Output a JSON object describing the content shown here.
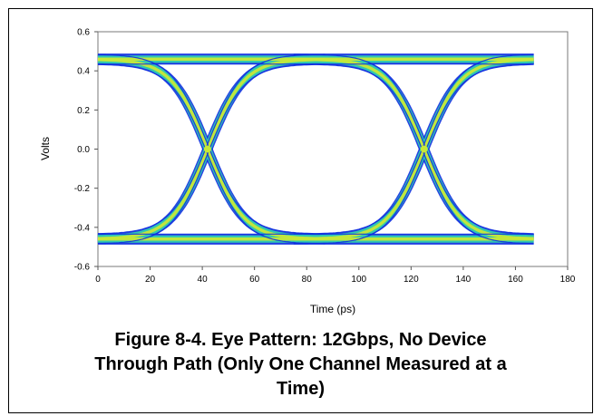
{
  "caption": {
    "line1": "Figure 8-4. Eye Pattern: 12Gbps, No Device",
    "line2": "Through Path (Only One Channel Measured at a",
    "line3": "Time)"
  },
  "chart_data": {
    "type": "eye-diagram",
    "xlabel": "Time (ps)",
    "ylabel": "Volts",
    "xlim": [
      0,
      180
    ],
    "ylim": [
      -0.6,
      0.6
    ],
    "x_ticks": [
      "0",
      "20",
      "40",
      "60",
      "80",
      "100",
      "120",
      "140",
      "160",
      "180"
    ],
    "y_ticks": [
      "0.6",
      "0.4",
      "0.2",
      "0.0",
      "-0.2",
      "-0.4",
      "-0.6"
    ],
    "grid": false,
    "data_x_range": [
      0,
      167
    ],
    "unit_interval_ps": 83.3,
    "high_level_v": 0.46,
    "low_level_v": -0.46,
    "crossings": [
      {
        "x": 42,
        "y": 0.0
      },
      {
        "x": 125,
        "y": 0.0
      }
    ],
    "colors": {
      "envelope": "#1030e0",
      "band": "#30c8b0",
      "core": "#c8e838"
    }
  }
}
